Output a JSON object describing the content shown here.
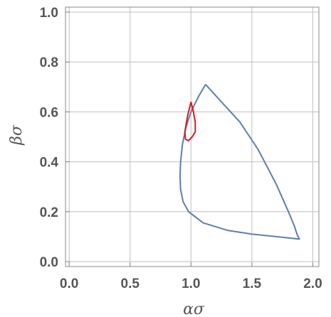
{
  "chart_data": {
    "type": "line",
    "title": "",
    "xlabel": "ασ",
    "ylabel": "βσ",
    "xlim": [
      0,
      2.0
    ],
    "ylim": [
      0,
      1.0
    ],
    "grid": true,
    "x_ticks": [
      "0.0",
      "0.5",
      "1.0",
      "1.5",
      "2.0"
    ],
    "y_ticks": [
      "0.0",
      "0.2",
      "0.4",
      "0.6",
      "0.8",
      "1.0"
    ],
    "colors": {
      "series1": "#5b7fb0",
      "series2": "#e0161c",
      "grid": "#bfbfbf",
      "frame": "#888888"
    },
    "series": [
      {
        "points": [
          [
            1.12,
            0.71
          ],
          [
            1.06,
            0.66
          ],
          [
            1.0,
            0.6
          ],
          [
            0.96,
            0.54
          ],
          [
            0.93,
            0.47
          ],
          [
            0.915,
            0.4
          ],
          [
            0.91,
            0.34
          ],
          [
            0.915,
            0.29
          ],
          [
            0.935,
            0.24
          ],
          [
            0.98,
            0.2
          ],
          [
            1.1,
            0.155
          ],
          [
            1.3,
            0.125
          ],
          [
            1.5,
            0.11
          ],
          [
            1.7,
            0.1
          ],
          [
            1.89,
            0.09
          ],
          [
            1.87,
            0.11
          ],
          [
            1.85,
            0.14
          ],
          [
            1.8,
            0.2
          ],
          [
            1.7,
            0.31
          ],
          [
            1.55,
            0.45
          ],
          [
            1.4,
            0.56
          ],
          [
            1.25,
            0.64
          ],
          [
            1.12,
            0.71
          ]
        ]
      },
      {
        "points": [
          [
            1.0,
            0.64
          ],
          [
            1.02,
            0.6
          ],
          [
            1.035,
            0.56
          ],
          [
            1.035,
            0.52
          ],
          [
            1.01,
            0.5
          ],
          [
            0.98,
            0.485
          ],
          [
            0.955,
            0.49
          ],
          [
            0.95,
            0.52
          ],
          [
            0.96,
            0.55
          ],
          [
            0.975,
            0.59
          ],
          [
            0.99,
            0.62
          ],
          [
            1.0,
            0.64
          ]
        ]
      }
    ]
  }
}
